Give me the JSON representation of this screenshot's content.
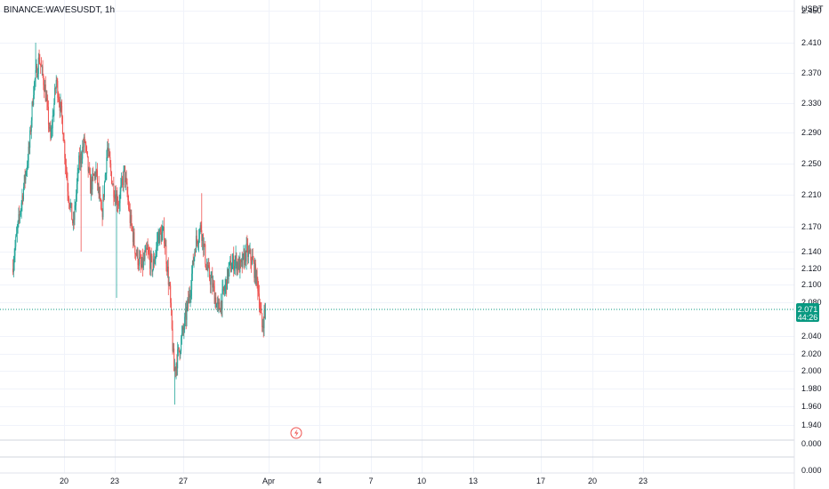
{
  "header": {
    "symbol_title": "BINANCE:WAVESUSDT, 1h",
    "currency": "USDT"
  },
  "price_scale": {
    "labels": [
      "2.450",
      "2.410",
      "2.370",
      "2.330",
      "2.290",
      "2.250",
      "2.210",
      "2.170",
      "2.140",
      "2.120",
      "2.100",
      "2.080",
      "2.040",
      "2.020",
      "2.000",
      "1.980",
      "1.960",
      "1.940"
    ],
    "indicator_labels": [
      "0.000",
      "0.000"
    ]
  },
  "current_price": {
    "price": "2.071",
    "countdown": "44:26",
    "value": 2.071
  },
  "time_axis": {
    "labels": [
      "20",
      "23",
      "27",
      "Apr",
      "4",
      "7",
      "10",
      "13",
      "17",
      "20",
      "23"
    ]
  },
  "colors": {
    "up": "#26a69a",
    "down": "#ef5350",
    "badge": "#089981",
    "grid": "#f0f3fa"
  },
  "icons": {
    "event_marker": "lightning-bolt-icon"
  },
  "chart_data": {
    "type": "candlestick",
    "title": "BINANCE:WAVESUSDT, 1h",
    "ylabel": "USDT",
    "ylim": [
      1.92,
      2.45
    ],
    "x_ticks": [
      "20",
      "23",
      "27",
      "Apr",
      "4",
      "7",
      "10",
      "13",
      "17",
      "20",
      "23"
    ],
    "last_price": 2.071,
    "keypoints": [
      [
        "Mar 17 00:00",
        2.12
      ],
      [
        "Mar 17 08:00",
        2.17
      ],
      [
        "Mar 17 16:00",
        2.22
      ],
      [
        "Mar 18 00:00",
        2.27
      ],
      [
        "Mar 18 06:00",
        2.35
      ],
      [
        "Mar 18 14:00",
        2.39
      ],
      [
        "Mar 18 22:00",
        2.35
      ],
      [
        "Mar 19 06:00",
        2.28
      ],
      [
        "Mar 19 14:00",
        2.36
      ],
      [
        "Mar 19 22:00",
        2.31
      ],
      [
        "Mar 20 06:00",
        2.22
      ],
      [
        "Mar 20 14:00",
        2.17
      ],
      [
        "Mar 20 22:00",
        2.25
      ],
      [
        "Mar 21 06:00",
        2.28
      ],
      [
        "Mar 21 14:00",
        2.22
      ],
      [
        "Mar 21 22:00",
        2.24
      ],
      [
        "Mar 22 06:00",
        2.18
      ],
      [
        "Mar 22 14:00",
        2.27
      ],
      [
        "Mar 22 22:00",
        2.22
      ],
      [
        "Mar 23 06:00",
        2.2
      ],
      [
        "Mar 23 14:00",
        2.24
      ],
      [
        "Mar 23 22:00",
        2.18
      ],
      [
        "Mar 24 06:00",
        2.14
      ],
      [
        "Mar 24 14:00",
        2.12
      ],
      [
        "Mar 24 22:00",
        2.14
      ],
      [
        "Mar 25 06:00",
        2.12
      ],
      [
        "Mar 25 14:00",
        2.16
      ],
      [
        "Mar 25 22:00",
        2.16
      ],
      [
        "Mar 26 06:00",
        2.09
      ],
      [
        "Mar 26 12:00",
        2.0
      ],
      [
        "Mar 26 18:00",
        2.02
      ],
      [
        "Mar 27 02:00",
        2.05
      ],
      [
        "Mar 27 10:00",
        2.09
      ],
      [
        "Mar 27 18:00",
        2.15
      ],
      [
        "Mar 28 02:00",
        2.17
      ],
      [
        "Mar 28 10:00",
        2.12
      ],
      [
        "Mar 28 18:00",
        2.1
      ],
      [
        "Mar 29 02:00",
        2.07
      ],
      [
        "Mar 29 10:00",
        2.09
      ],
      [
        "Mar 29 18:00",
        2.12
      ],
      [
        "Mar 30 02:00",
        2.13
      ],
      [
        "Mar 30 10:00",
        2.12
      ],
      [
        "Mar 30 18:00",
        2.14
      ],
      [
        "Mar 31 02:00",
        2.13
      ],
      [
        "Mar 31 10:00",
        2.1
      ],
      [
        "Mar 31 16:00",
        2.05
      ],
      [
        "Mar 31 20:00",
        2.07
      ]
    ]
  }
}
